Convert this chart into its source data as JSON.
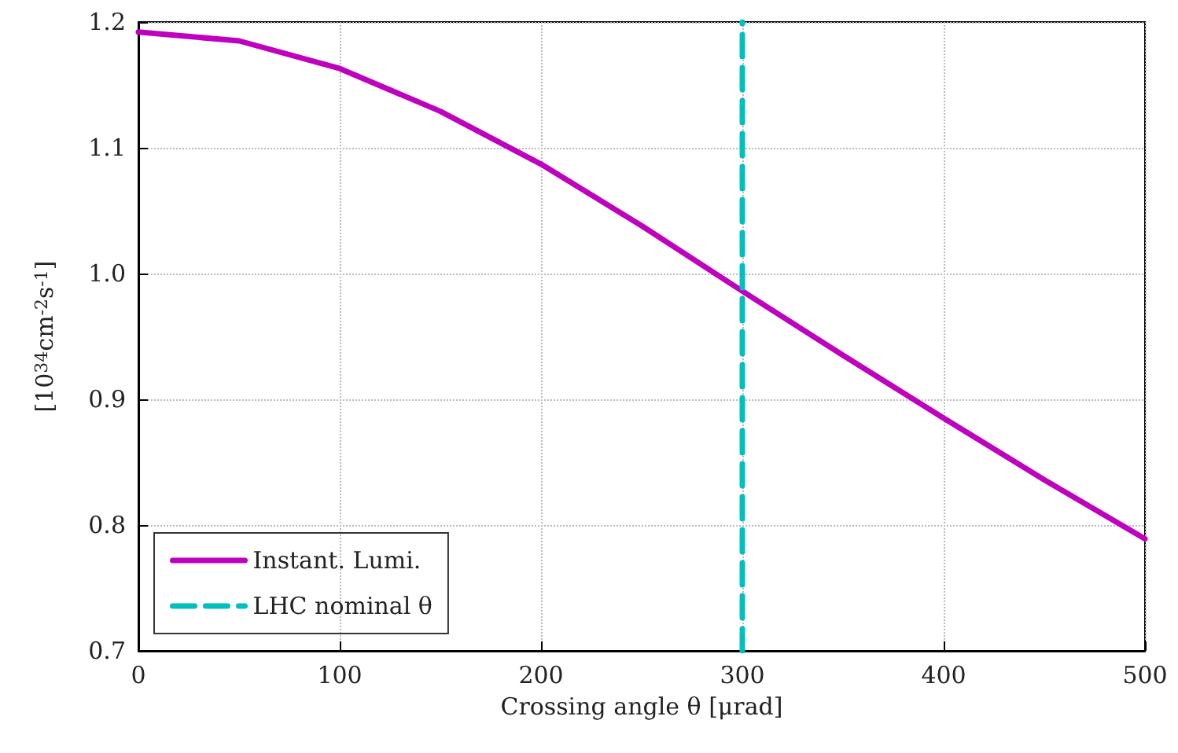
{
  "chart_data": {
    "type": "line",
    "xlabel": "Crossing angle θ [μrad]",
    "ylabel": "[10$^{34}$cm$^{-2}$s$^{-1}$]",
    "x": [
      0,
      50,
      100,
      150,
      200,
      250,
      300,
      350,
      400,
      450,
      500
    ],
    "series": [
      {
        "name": "Instant. Lumi.",
        "color": "#bf00bf",
        "values": [
          1.192,
          1.185,
          1.163,
          1.129,
          1.087,
          1.038,
          0.986,
          0.935,
          0.885,
          0.836,
          0.789
        ]
      },
      {
        "name": "LHC nominal θ",
        "color": "#00bfbf",
        "x": [
          300,
          300
        ],
        "values": [
          0.7,
          1.2
        ],
        "line_style": "dashed"
      }
    ],
    "xlim": [
      0,
      500
    ],
    "xticks": [
      0,
      100,
      200,
      300,
      400,
      500
    ],
    "ylim": [
      0.7,
      1.2
    ],
    "yticks": [
      0.7,
      0.8,
      0.9,
      {
        "value": 1,
        "label": "1.0"
      },
      1.1,
      1.2
    ],
    "grid": true,
    "legend": "bottom left",
    "marker": "none",
    "line_style": "solid"
  }
}
